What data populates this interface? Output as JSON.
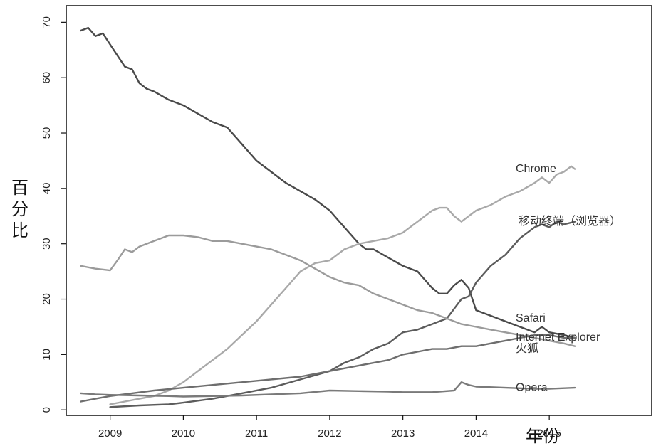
{
  "chart_data": {
    "type": "line",
    "title": "",
    "xlabel": "年份",
    "ylabel": "百分比",
    "xlim": [
      2008.4,
      2016.4
    ],
    "ylim": [
      -1,
      73
    ],
    "x_ticks": [
      2009,
      2010,
      2011,
      2012,
      2013,
      2014,
      2015
    ],
    "y_ticks": [
      0,
      10,
      20,
      30,
      40,
      50,
      60,
      70
    ],
    "grid": false,
    "legend": "direct labels at right end of lines",
    "series": [
      {
        "name": "Internet Explorer",
        "color": "#4a4a4a",
        "points": [
          [
            2008.6,
            68.5
          ],
          [
            2008.7,
            69
          ],
          [
            2008.8,
            67.5
          ],
          [
            2008.9,
            68
          ],
          [
            2009.0,
            66
          ],
          [
            2009.1,
            64
          ],
          [
            2009.2,
            62
          ],
          [
            2009.3,
            61.5
          ],
          [
            2009.4,
            59
          ],
          [
            2009.5,
            58
          ],
          [
            2009.6,
            57.5
          ],
          [
            2009.8,
            56
          ],
          [
            2010.0,
            55
          ],
          [
            2010.2,
            53.5
          ],
          [
            2010.4,
            52
          ],
          [
            2010.6,
            51
          ],
          [
            2010.8,
            48
          ],
          [
            2011.0,
            45
          ],
          [
            2011.2,
            43
          ],
          [
            2011.4,
            41
          ],
          [
            2011.6,
            39.5
          ],
          [
            2011.8,
            38
          ],
          [
            2012.0,
            36
          ],
          [
            2012.2,
            33
          ],
          [
            2012.4,
            30
          ],
          [
            2012.5,
            29
          ],
          [
            2012.6,
            29
          ],
          [
            2012.8,
            27.5
          ],
          [
            2013.0,
            26
          ],
          [
            2013.2,
            25
          ],
          [
            2013.4,
            22
          ],
          [
            2013.5,
            21
          ],
          [
            2013.6,
            21
          ],
          [
            2013.7,
            22.5
          ],
          [
            2013.8,
            23.5
          ],
          [
            2013.9,
            22
          ],
          [
            2014.0,
            18
          ],
          [
            2014.2,
            17
          ],
          [
            2014.4,
            16
          ],
          [
            2014.6,
            15
          ],
          [
            2014.8,
            14
          ],
          [
            2014.9,
            15
          ],
          [
            2015.0,
            14
          ],
          [
            2015.2,
            13.5
          ],
          [
            2015.35,
            13
          ]
        ]
      },
      {
        "name": "Chrome",
        "color": "#a9a9a9",
        "points": [
          [
            2009.0,
            1
          ],
          [
            2009.2,
            1.5
          ],
          [
            2009.4,
            2
          ],
          [
            2009.6,
            2.5
          ],
          [
            2009.8,
            3.5
          ],
          [
            2010.0,
            5
          ],
          [
            2010.2,
            7
          ],
          [
            2010.4,
            9
          ],
          [
            2010.6,
            11
          ],
          [
            2010.8,
            13.5
          ],
          [
            2011.0,
            16
          ],
          [
            2011.2,
            19
          ],
          [
            2011.4,
            22
          ],
          [
            2011.6,
            25
          ],
          [
            2011.8,
            26.5
          ],
          [
            2012.0,
            27
          ],
          [
            2012.2,
            29
          ],
          [
            2012.4,
            30
          ],
          [
            2012.6,
            30.5
          ],
          [
            2012.8,
            31
          ],
          [
            2013.0,
            32
          ],
          [
            2013.2,
            34
          ],
          [
            2013.4,
            36
          ],
          [
            2013.5,
            36.5
          ],
          [
            2013.6,
            36.5
          ],
          [
            2013.7,
            35
          ],
          [
            2013.8,
            34
          ],
          [
            2013.9,
            35
          ],
          [
            2014.0,
            36
          ],
          [
            2014.2,
            37
          ],
          [
            2014.4,
            38.5
          ],
          [
            2014.6,
            39.5
          ],
          [
            2014.8,
            41
          ],
          [
            2014.9,
            42
          ],
          [
            2015.0,
            41
          ],
          [
            2015.1,
            42.5
          ],
          [
            2015.2,
            43
          ],
          [
            2015.3,
            44
          ],
          [
            2015.35,
            43.5
          ]
        ]
      },
      {
        "name": "移动终端（浏览器）",
        "color": "#5c5c5c",
        "points": [
          [
            2009.0,
            0.5
          ],
          [
            2009.4,
            0.8
          ],
          [
            2009.8,
            1
          ],
          [
            2010.0,
            1.3
          ],
          [
            2010.4,
            2
          ],
          [
            2010.8,
            3
          ],
          [
            2011.2,
            4
          ],
          [
            2011.6,
            5.5
          ],
          [
            2012.0,
            7
          ],
          [
            2012.2,
            8.5
          ],
          [
            2012.4,
            9.5
          ],
          [
            2012.6,
            11
          ],
          [
            2012.8,
            12
          ],
          [
            2013.0,
            14
          ],
          [
            2013.2,
            14.5
          ],
          [
            2013.4,
            15.5
          ],
          [
            2013.6,
            16.5
          ],
          [
            2013.8,
            20
          ],
          [
            2013.9,
            20.5
          ],
          [
            2014.0,
            23
          ],
          [
            2014.2,
            26
          ],
          [
            2014.4,
            28
          ],
          [
            2014.6,
            31
          ],
          [
            2014.8,
            33
          ],
          [
            2014.9,
            33.5
          ],
          [
            2015.0,
            33
          ],
          [
            2015.1,
            34
          ],
          [
            2015.2,
            33.5
          ],
          [
            2015.35,
            34
          ]
        ]
      },
      {
        "name": "Safari",
        "color": "#9b9b9b",
        "points": [
          [
            2008.6,
            26
          ],
          [
            2008.8,
            25.5
          ],
          [
            2009.0,
            25.2
          ],
          [
            2009.1,
            27
          ],
          [
            2009.2,
            29
          ],
          [
            2009.3,
            28.5
          ],
          [
            2009.4,
            29.5
          ],
          [
            2009.6,
            30.5
          ],
          [
            2009.8,
            31.5
          ],
          [
            2010.0,
            31.5
          ],
          [
            2010.2,
            31.2
          ],
          [
            2010.4,
            30.5
          ],
          [
            2010.6,
            30.5
          ],
          [
            2010.8,
            30
          ],
          [
            2011.0,
            29.5
          ],
          [
            2011.2,
            29
          ],
          [
            2011.4,
            28
          ],
          [
            2011.6,
            27
          ],
          [
            2011.8,
            25.5
          ],
          [
            2012.0,
            24
          ],
          [
            2012.2,
            23
          ],
          [
            2012.4,
            22.5
          ],
          [
            2012.6,
            21
          ],
          [
            2012.8,
            20
          ],
          [
            2013.0,
            19
          ],
          [
            2013.2,
            18
          ],
          [
            2013.4,
            17.5
          ],
          [
            2013.6,
            16.5
          ],
          [
            2013.8,
            15.5
          ],
          [
            2014.0,
            15
          ],
          [
            2014.2,
            14.5
          ],
          [
            2014.4,
            14
          ],
          [
            2014.6,
            13.5
          ],
          [
            2014.8,
            13
          ],
          [
            2015.0,
            12.5
          ],
          [
            2015.2,
            12
          ],
          [
            2015.35,
            11.5
          ]
        ]
      },
      {
        "name": "火狐",
        "color": "#6e6e6e",
        "points": [
          [
            2008.6,
            1.5
          ],
          [
            2008.8,
            2
          ],
          [
            2009.0,
            2.5
          ],
          [
            2009.3,
            3
          ],
          [
            2009.6,
            3.5
          ],
          [
            2010.0,
            4
          ],
          [
            2010.4,
            4.5
          ],
          [
            2010.8,
            5
          ],
          [
            2011.2,
            5.5
          ],
          [
            2011.6,
            6
          ],
          [
            2012.0,
            7
          ],
          [
            2012.4,
            8
          ],
          [
            2012.8,
            9
          ],
          [
            2013.0,
            10
          ],
          [
            2013.2,
            10.5
          ],
          [
            2013.4,
            11
          ],
          [
            2013.6,
            11
          ],
          [
            2013.8,
            11.5
          ],
          [
            2014.0,
            11.5
          ],
          [
            2014.2,
            12
          ],
          [
            2014.4,
            12.5
          ],
          [
            2014.6,
            13
          ],
          [
            2014.8,
            13.5
          ],
          [
            2015.0,
            13.5
          ],
          [
            2015.2,
            13
          ],
          [
            2015.35,
            13
          ]
        ]
      },
      {
        "name": "Opera",
        "color": "#7a7a7a",
        "points": [
          [
            2008.6,
            3
          ],
          [
            2008.8,
            2.8
          ],
          [
            2009.0,
            2.7
          ],
          [
            2009.4,
            2.6
          ],
          [
            2009.8,
            2.5
          ],
          [
            2010.0,
            2.4
          ],
          [
            2010.4,
            2.5
          ],
          [
            2010.8,
            2.6
          ],
          [
            2011.2,
            2.8
          ],
          [
            2011.6,
            3
          ],
          [
            2012.0,
            3.5
          ],
          [
            2012.4,
            3.4
          ],
          [
            2012.8,
            3.3
          ],
          [
            2013.0,
            3.2
          ],
          [
            2013.4,
            3.2
          ],
          [
            2013.7,
            3.5
          ],
          [
            2013.8,
            5
          ],
          [
            2013.9,
            4.5
          ],
          [
            2014.0,
            4.2
          ],
          [
            2014.4,
            4
          ],
          [
            2014.8,
            3.8
          ],
          [
            2015.0,
            3.8
          ],
          [
            2015.35,
            4
          ]
        ]
      }
    ]
  }
}
